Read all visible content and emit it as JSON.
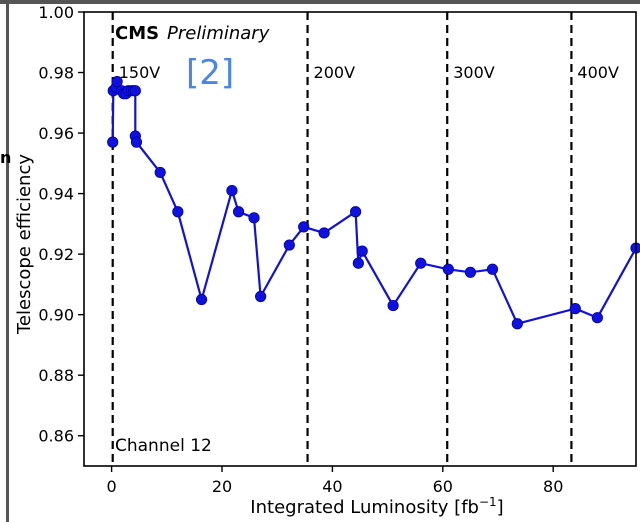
{
  "colors": {
    "series": "#1111dd",
    "ref": "#4a86e8",
    "frame": "#555555"
  },
  "header": {
    "experiment": "CMS",
    "status": "Preliminary",
    "reference": "[2]",
    "cut_label": "n"
  },
  "chart_data": {
    "type": "line",
    "xlabel": "Integrated Luminosity [fb",
    "xlabel_sup": "−1",
    "xlabel_suffix": "]",
    "ylabel": "Telescope efficiency",
    "xlim": [
      -5,
      95
    ],
    "ylim": [
      0.85,
      1.0
    ],
    "xticks": [
      0,
      20,
      40,
      60,
      80
    ],
    "yticks": [
      0.86,
      0.88,
      0.9,
      0.92,
      0.94,
      0.96,
      0.98,
      1.0
    ],
    "ytick_labels": [
      "0.86",
      "0.88",
      "0.90",
      "0.92",
      "0.94",
      "0.96",
      "0.98",
      "1.00"
    ],
    "xtick_labels": [
      "0",
      "20",
      "40",
      "60",
      "80"
    ],
    "annotation": "Channel 12",
    "voltage_lines": [
      {
        "x": 0.2,
        "label": "150V"
      },
      {
        "x": 35.5,
        "label": "200V"
      },
      {
        "x": 60.8,
        "label": "300V"
      },
      {
        "x": 83.3,
        "label": "400V"
      }
    ],
    "series": [
      {
        "x": [
          0.2,
          0.3,
          0.8,
          1.0,
          1.8,
          2.2,
          2.6,
          3.0,
          3.6,
          4.0,
          4.3,
          4.3,
          4.5,
          8.8,
          12.0,
          16.3,
          21.8,
          23.0,
          25.8,
          27.0,
          32.2,
          34.8,
          38.5,
          44.2,
          44.7,
          45.4,
          51.0,
          56.0,
          61.0,
          65.0,
          69.0,
          73.5,
          84.0,
          88.0,
          95.0
        ],
        "y": [
          0.957,
          0.974,
          0.975,
          0.977,
          0.974,
          0.973,
          0.973,
          0.974,
          0.974,
          0.974,
          0.974,
          0.959,
          0.957,
          0.947,
          0.934,
          0.905,
          0.941,
          0.934,
          0.932,
          0.906,
          0.923,
          0.929,
          0.927,
          0.934,
          0.917,
          0.921,
          0.903,
          0.917,
          0.915,
          0.914,
          0.915,
          0.897,
          0.902,
          0.899,
          0.922
        ]
      }
    ]
  }
}
